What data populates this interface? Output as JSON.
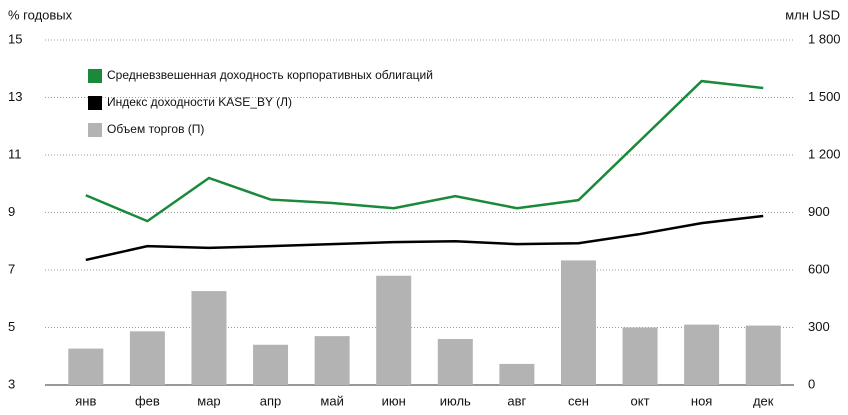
{
  "chart_data": {
    "type": "bar-line",
    "y_label": "% годовых",
    "y2_label": "млн USD",
    "categories": [
      "янв",
      "фев",
      "мар",
      "апр",
      "май",
      "июн",
      "июль",
      "авг",
      "сен",
      "окт",
      "ноя",
      "дек"
    ],
    "series": [
      {
        "name": "Средневзвешенная доходность корпоративных облигаций",
        "type": "line",
        "color": "#1a8a3a",
        "axis": "y",
        "values": [
          9.6,
          8.7,
          10.2,
          9.45,
          9.33,
          9.15,
          9.57,
          9.15,
          9.43,
          11.5,
          13.57,
          13.33
        ]
      },
      {
        "name": "Индекс доходности KASE_BY (Л)",
        "type": "line",
        "color": "#000000",
        "axis": "y",
        "values": [
          7.35,
          7.83,
          7.77,
          7.83,
          7.9,
          7.97,
          8.0,
          7.9,
          7.93,
          8.25,
          8.63,
          8.88
        ]
      },
      {
        "name": "Объем торгов (П)",
        "type": "bar",
        "color": "#b3b3b3",
        "axis": "y2",
        "values": [
          190,
          280,
          490,
          210,
          255,
          570,
          240,
          110,
          650,
          300,
          315,
          310
        ]
      }
    ],
    "ylim": [
      3,
      15
    ],
    "yticks": [
      3,
      5,
      7,
      9,
      11,
      13,
      15
    ],
    "y2lim": [
      0,
      1800
    ],
    "y2ticks": [
      0,
      300,
      600,
      900,
      {
        "value": 1200,
        "label": "1 200"
      },
      {
        "value": 1500,
        "label": "1 500"
      },
      {
        "value": 1800,
        "label": "1 800"
      }
    ],
    "grid": true
  }
}
